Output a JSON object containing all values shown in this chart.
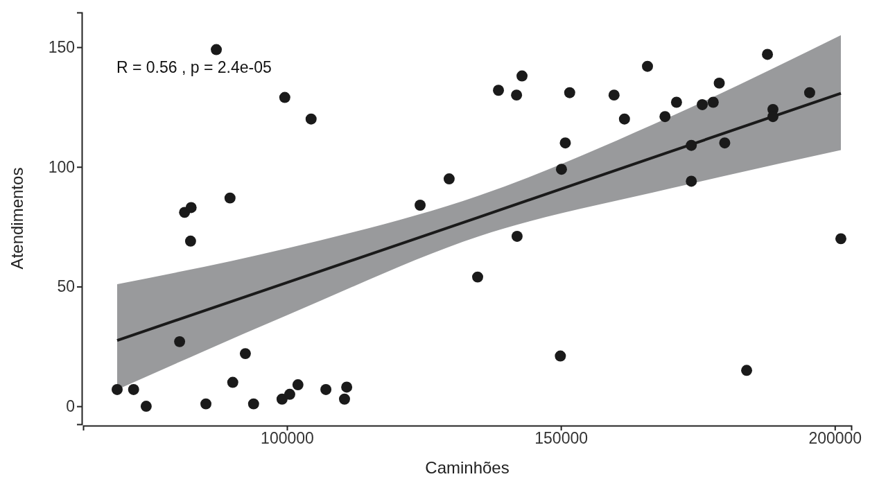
{
  "chart_data": {
    "type": "scatter",
    "xlabel": "Caminhões",
    "ylabel": "Atendimentos",
    "xlim": [
      62800,
      203000
    ],
    "ylim": [
      -7.5,
      164.5
    ],
    "xticks": [
      100000,
      150000,
      200000
    ],
    "yticks": [
      0,
      50,
      100,
      150
    ],
    "grid": false,
    "marker": "circle",
    "annotations": [
      {
        "text": "R = 0.56 , p = 2.4e-05"
      }
    ],
    "series": [
      {
        "color": "#1a1a1a",
        "x": [
          69000,
          72000,
          74300,
          80400,
          81300,
          82500,
          82400,
          87100,
          85200,
          89600,
          90100,
          92400,
          93900,
          99100,
          99600,
          100500,
          102000,
          104400,
          107100,
          110500,
          110900,
          124300,
          129600,
          134800,
          138600,
          141900,
          142900,
          142000,
          149900,
          150100,
          150800,
          151600,
          159700,
          161600,
          165800,
          169000,
          171100,
          173800,
          173800,
          175800,
          177800,
          178900,
          179900,
          183900,
          187700,
          188700,
          188700,
          195400,
          201100
        ],
        "values": [
          7,
          7,
          0,
          27,
          81,
          83,
          69,
          149,
          1,
          87,
          10,
          22,
          1,
          3,
          129,
          5,
          9,
          120,
          7,
          3,
          8,
          84,
          95,
          54,
          132,
          130,
          138,
          71,
          21,
          99,
          110,
          131,
          130,
          120,
          142,
          121,
          127,
          109,
          94,
          126,
          127,
          135,
          110,
          15,
          147,
          124,
          121,
          131,
          70
        ]
      },
      {
        "type": "line",
        "color": "#1a1a1a",
        "line_style": "solid",
        "marker": "none",
        "x": [
          69000,
          100000,
          135000,
          170000,
          201100
        ],
        "values": [
          27.5,
          51.7,
          79,
          106.4,
          130.7
        ],
        "lower": [
          7,
          38,
          71,
          91,
          107
        ],
        "upper": [
          51,
          66,
          88,
          121,
          155
        ]
      }
    ]
  }
}
